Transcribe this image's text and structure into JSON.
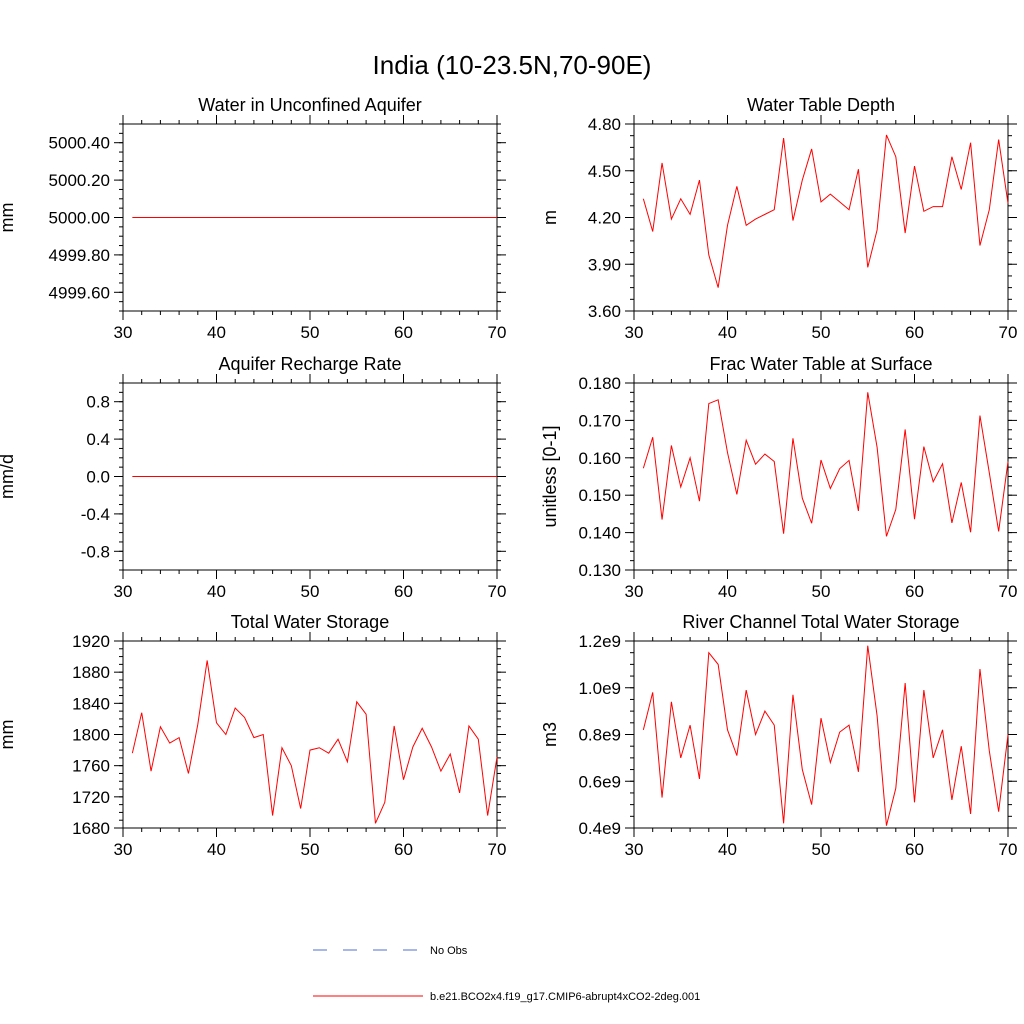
{
  "figure": {
    "title": "India (10-23.5N,70-90E)",
    "colors": {
      "model": "#ff0000",
      "obs": "#4f6fd0",
      "axis": "#000000"
    },
    "legend": [
      {
        "label": "No Obs",
        "style": "dashed",
        "color": "#4f6fd0"
      },
      {
        "label": "b.e21.BCO2x4.f19_g17.CMIP6-abrupt4xCO2-2deg.001",
        "style": "solid",
        "color": "#ff0000"
      }
    ]
  },
  "chart_data": [
    {
      "type": "line",
      "title": "Water in Unconfined Aquifer",
      "ylabel": "mm",
      "xlabel": "",
      "xlim": [
        30,
        70
      ],
      "ylim": [
        4999.5,
        5000.5
      ],
      "xticks": [
        30,
        40,
        50,
        60,
        70
      ],
      "yticks": [
        4999.6,
        4999.8,
        5000.0,
        5000.2,
        5000.4
      ],
      "yticklabels": [
        "4999.60",
        "4999.80",
        "5000.00",
        "5000.20",
        "5000.40"
      ],
      "yminor": 0.05,
      "x": [
        31,
        70
      ],
      "series": [
        {
          "name": "b.e21.BCO2x4.f19_g17.CMIP6-abrupt4xCO2-2deg.001",
          "values": [
            5000.0,
            5000.0
          ]
        }
      ]
    },
    {
      "type": "line",
      "title": "Water Table Depth",
      "ylabel": "m",
      "xlabel": "",
      "xlim": [
        30,
        70
      ],
      "ylim": [
        3.6,
        4.8
      ],
      "xticks": [
        30,
        40,
        50,
        60,
        70
      ],
      "yticks": [
        3.6,
        3.9,
        4.2,
        4.5,
        4.8
      ],
      "yticklabels": [
        "3.60",
        "3.90",
        "4.20",
        "4.50",
        "4.80"
      ],
      "yminor": 0.075,
      "x": [
        31,
        32,
        33,
        34,
        35,
        36,
        37,
        38,
        39,
        40,
        41,
        42,
        43,
        44,
        45,
        46,
        47,
        48,
        49,
        50,
        51,
        52,
        53,
        54,
        55,
        56,
        57,
        58,
        59,
        60,
        61,
        62,
        63,
        64,
        65,
        66,
        67,
        68,
        69,
        70
      ],
      "series": [
        {
          "name": "b.e21.BCO2x4.f19_g17.CMIP6-abrupt4xCO2-2deg.001",
          "values": [
            4.32,
            4.11,
            4.55,
            4.19,
            4.32,
            4.22,
            4.44,
            3.96,
            3.75,
            4.15,
            4.4,
            4.15,
            4.19,
            4.22,
            4.25,
            4.71,
            4.18,
            4.44,
            4.64,
            4.3,
            4.35,
            4.3,
            4.25,
            4.51,
            3.88,
            4.12,
            4.73,
            4.59,
            4.1,
            4.53,
            4.24,
            4.27,
            4.27,
            4.59,
            4.38,
            4.68,
            4.02,
            4.25,
            4.7,
            4.29
          ]
        }
      ]
    },
    {
      "type": "line",
      "title": "Aquifer Recharge Rate",
      "ylabel": "mm/d",
      "xlabel": "",
      "xlim": [
        30,
        70
      ],
      "ylim": [
        -1.0,
        1.0
      ],
      "xticks": [
        30,
        40,
        50,
        60,
        70
      ],
      "yticks": [
        -0.8,
        -0.4,
        0.0,
        0.4,
        0.8
      ],
      "yticklabels": [
        "-0.8",
        "-0.4",
        "0.0",
        "0.4",
        "0.8"
      ],
      "yminor": 0.1,
      "x": [
        31,
        70
      ],
      "series": [
        {
          "name": "b.e21.BCO2x4.f19_g17.CMIP6-abrupt4xCO2-2deg.001",
          "values": [
            0.0,
            0.0
          ]
        }
      ]
    },
    {
      "type": "line",
      "title": "Frac Water Table at Surface",
      "ylabel": "unitless [0-1]",
      "xlabel": "",
      "xlim": [
        30,
        70
      ],
      "ylim": [
        0.13,
        0.18
      ],
      "xticks": [
        30,
        40,
        50,
        60,
        70
      ],
      "yticks": [
        0.13,
        0.14,
        0.15,
        0.16,
        0.17,
        0.18
      ],
      "yticklabels": [
        "0.130",
        "0.140",
        "0.150",
        "0.160",
        "0.170",
        "0.180"
      ],
      "yminor": 0.0025,
      "x": [
        31,
        32,
        33,
        34,
        35,
        36,
        37,
        38,
        39,
        40,
        41,
        42,
        43,
        44,
        45,
        46,
        47,
        48,
        49,
        50,
        51,
        52,
        53,
        54,
        55,
        56,
        57,
        58,
        59,
        60,
        61,
        62,
        63,
        64,
        65,
        66,
        67,
        68,
        69,
        70
      ],
      "series": [
        {
          "name": "b.e21.BCO2x4.f19_g17.CMIP6-abrupt4xCO2-2deg.001",
          "values": [
            0.1572,
            0.1655,
            0.1435,
            0.1633,
            0.1522,
            0.16,
            0.1484,
            0.1745,
            0.1755,
            0.1614,
            0.1502,
            0.1647,
            0.1583,
            0.161,
            0.159,
            0.1397,
            0.1652,
            0.1492,
            0.1425,
            0.1594,
            0.1518,
            0.1571,
            0.1593,
            0.1458,
            0.1775,
            0.1628,
            0.139,
            0.1462,
            0.1676,
            0.1436,
            0.163,
            0.1536,
            0.1584,
            0.1426,
            0.1534,
            0.1401,
            0.1713,
            0.156,
            0.1403,
            0.159
          ]
        }
      ]
    },
    {
      "type": "line",
      "title": "Total Water Storage",
      "ylabel": "mm",
      "xlabel": "",
      "xlim": [
        30,
        70
      ],
      "ylim": [
        1680,
        1920
      ],
      "xticks": [
        30,
        40,
        50,
        60,
        70
      ],
      "yticks": [
        1680,
        1720,
        1760,
        1800,
        1840,
        1880,
        1920
      ],
      "yticklabels": [
        "1680",
        "1720",
        "1760",
        "1800",
        "1840",
        "1880",
        "1920"
      ],
      "yminor": 10,
      "x": [
        31,
        32,
        33,
        34,
        35,
        36,
        37,
        38,
        39,
        40,
        41,
        42,
        43,
        44,
        45,
        46,
        47,
        48,
        49,
        50,
        51,
        52,
        53,
        54,
        55,
        56,
        57,
        58,
        59,
        60,
        61,
        62,
        63,
        64,
        65,
        66,
        67,
        68,
        69,
        70
      ],
      "series": [
        {
          "name": "b.e21.BCO2x4.f19_g17.CMIP6-abrupt4xCO2-2deg.001",
          "values": [
            1776,
            1828,
            1753,
            1810,
            1789,
            1796,
            1750,
            1813,
            1895,
            1815,
            1800,
            1834,
            1822,
            1796,
            1800,
            1696,
            1783,
            1760,
            1705,
            1780,
            1783,
            1776,
            1794,
            1765,
            1842,
            1826,
            1686,
            1713,
            1811,
            1742,
            1784,
            1808,
            1784,
            1753,
            1775,
            1725,
            1811,
            1794,
            1696,
            1771
          ]
        }
      ]
    },
    {
      "type": "line",
      "title": "River Channel Total Water Storage",
      "ylabel": "m3",
      "xlabel": "",
      "xlim": [
        30,
        70
      ],
      "ylim": [
        400000000.0,
        1200000000.0
      ],
      "xticks": [
        30,
        40,
        50,
        60,
        70
      ],
      "yticks": [
        400000000.0,
        600000000.0,
        800000000.0,
        1000000000.0,
        1200000000.0
      ],
      "yticklabels": [
        "0.4e9",
        "0.6e9",
        "0.8e9",
        "1.0e9",
        "1.2e9"
      ],
      "yminor": 50000000.0,
      "x": [
        31,
        32,
        33,
        34,
        35,
        36,
        37,
        38,
        39,
        40,
        41,
        42,
        43,
        44,
        45,
        46,
        47,
        48,
        49,
        50,
        51,
        52,
        53,
        54,
        55,
        56,
        57,
        58,
        59,
        60,
        61,
        62,
        63,
        64,
        65,
        66,
        67,
        68,
        69,
        70
      ],
      "series": [
        {
          "name": "b.e21.BCO2x4.f19_g17.CMIP6-abrupt4xCO2-2deg.001",
          "values": [
            820000000.0,
            980000000.0,
            530000000.0,
            940000000.0,
            700000000.0,
            840000000.0,
            610000000.0,
            1150000000.0,
            1100000000.0,
            820000000.0,
            710000000.0,
            990000000.0,
            800000000.0,
            900000000.0,
            840000000.0,
            420000000.0,
            970000000.0,
            650000000.0,
            500000000.0,
            870000000.0,
            680000000.0,
            810000000.0,
            840000000.0,
            640000000.0,
            1180000000.0,
            880000000.0,
            410000000.0,
            570000000.0,
            1020000000.0,
            510000000.0,
            990000000.0,
            700000000.0,
            820000000.0,
            520000000.0,
            750000000.0,
            460000000.0,
            1080000000.0,
            730000000.0,
            470000000.0,
            800000000.0
          ]
        }
      ]
    }
  ]
}
